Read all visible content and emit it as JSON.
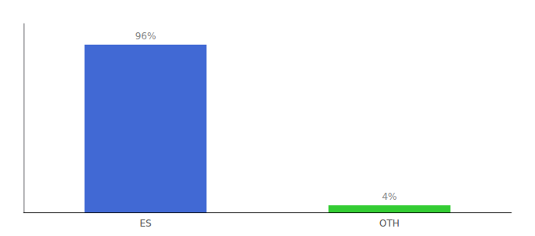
{
  "chart_data": {
    "type": "bar",
    "categories": [
      "ES",
      "OTH"
    ],
    "values": [
      96,
      4
    ],
    "colors": [
      "#4169d4",
      "#33cc33"
    ],
    "data_labels": true,
    "value_labels": [
      "96%",
      "4%"
    ],
    "ylim": [
      0,
      108
    ],
    "grid": false,
    "tick_labels": "x"
  }
}
